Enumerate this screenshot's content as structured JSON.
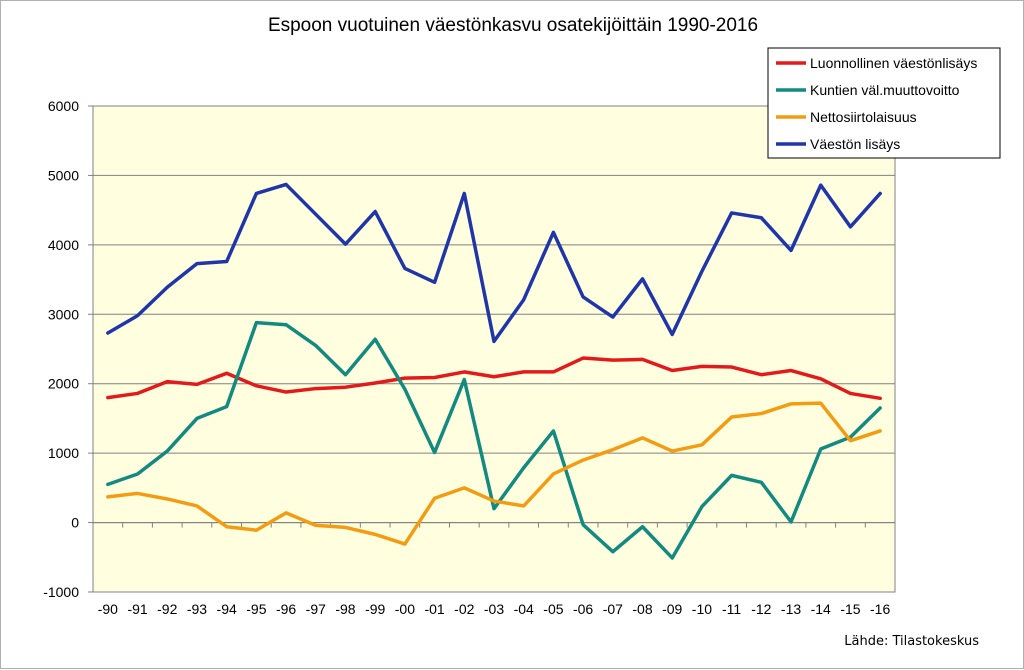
{
  "chart_data": {
    "type": "line",
    "title": "Espoon vuotuinen väestönkasvu osatekijöittäin 1990-2016",
    "source": "Lähde: Tilastokeskus",
    "categories": [
      "-90",
      "-91",
      "-92",
      "-93",
      "-94",
      "-95",
      "-96",
      "-97",
      "-98",
      "-99",
      "-00",
      "-01",
      "-02",
      "-03",
      "-04",
      "-05",
      "-06",
      "-07",
      "-08",
      "-09",
      "-10",
      "-11",
      "-12",
      "-13",
      "-14",
      "-15",
      "-16"
    ],
    "ylim": [
      -1000,
      6000
    ],
    "yticks": [
      -1000,
      0,
      1000,
      2000,
      3000,
      4000,
      5000,
      6000
    ],
    "grid": true,
    "legend_position": "top-right",
    "series": [
      {
        "name": "Luonnollinen väestönlisäys",
        "color": "#e31a1c",
        "values": [
          1800,
          1860,
          2030,
          1990,
          2150,
          1970,
          1880,
          1930,
          1950,
          2010,
          2080,
          2090,
          2170,
          2100,
          2170,
          2170,
          2370,
          2340,
          2350,
          2190,
          2250,
          2240,
          2130,
          2190,
          2070,
          1860,
          1790
        ]
      },
      {
        "name": "Kuntien väl.muuttovoitto",
        "color": "#138a80",
        "values": [
          550,
          700,
          1030,
          1500,
          1670,
          2880,
          2850,
          2550,
          2130,
          2640,
          1920,
          1010,
          2060,
          200,
          790,
          1320,
          -30,
          -420,
          -60,
          -510,
          230,
          680,
          580,
          10,
          1060,
          1230,
          1650
        ]
      },
      {
        "name": "Nettosiirtolaisuus",
        "color": "#f39c12",
        "values": [
          370,
          420,
          340,
          240,
          -60,
          -110,
          140,
          -40,
          -70,
          -170,
          -310,
          350,
          500,
          310,
          240,
          700,
          900,
          1050,
          1220,
          1030,
          1120,
          1520,
          1570,
          1710,
          1720,
          1180,
          1320
        ]
      },
      {
        "name": "Väestön lisäys",
        "color": "#1f35a8",
        "values": [
          2730,
          2980,
          3390,
          3730,
          3760,
          4740,
          4870,
          4440,
          4010,
          4480,
          3660,
          3460,
          4740,
          2610,
          3210,
          4180,
          3250,
          2960,
          3510,
          2710,
          3620,
          4460,
          4390,
          3920,
          4860,
          4260,
          4740
        ]
      }
    ]
  }
}
